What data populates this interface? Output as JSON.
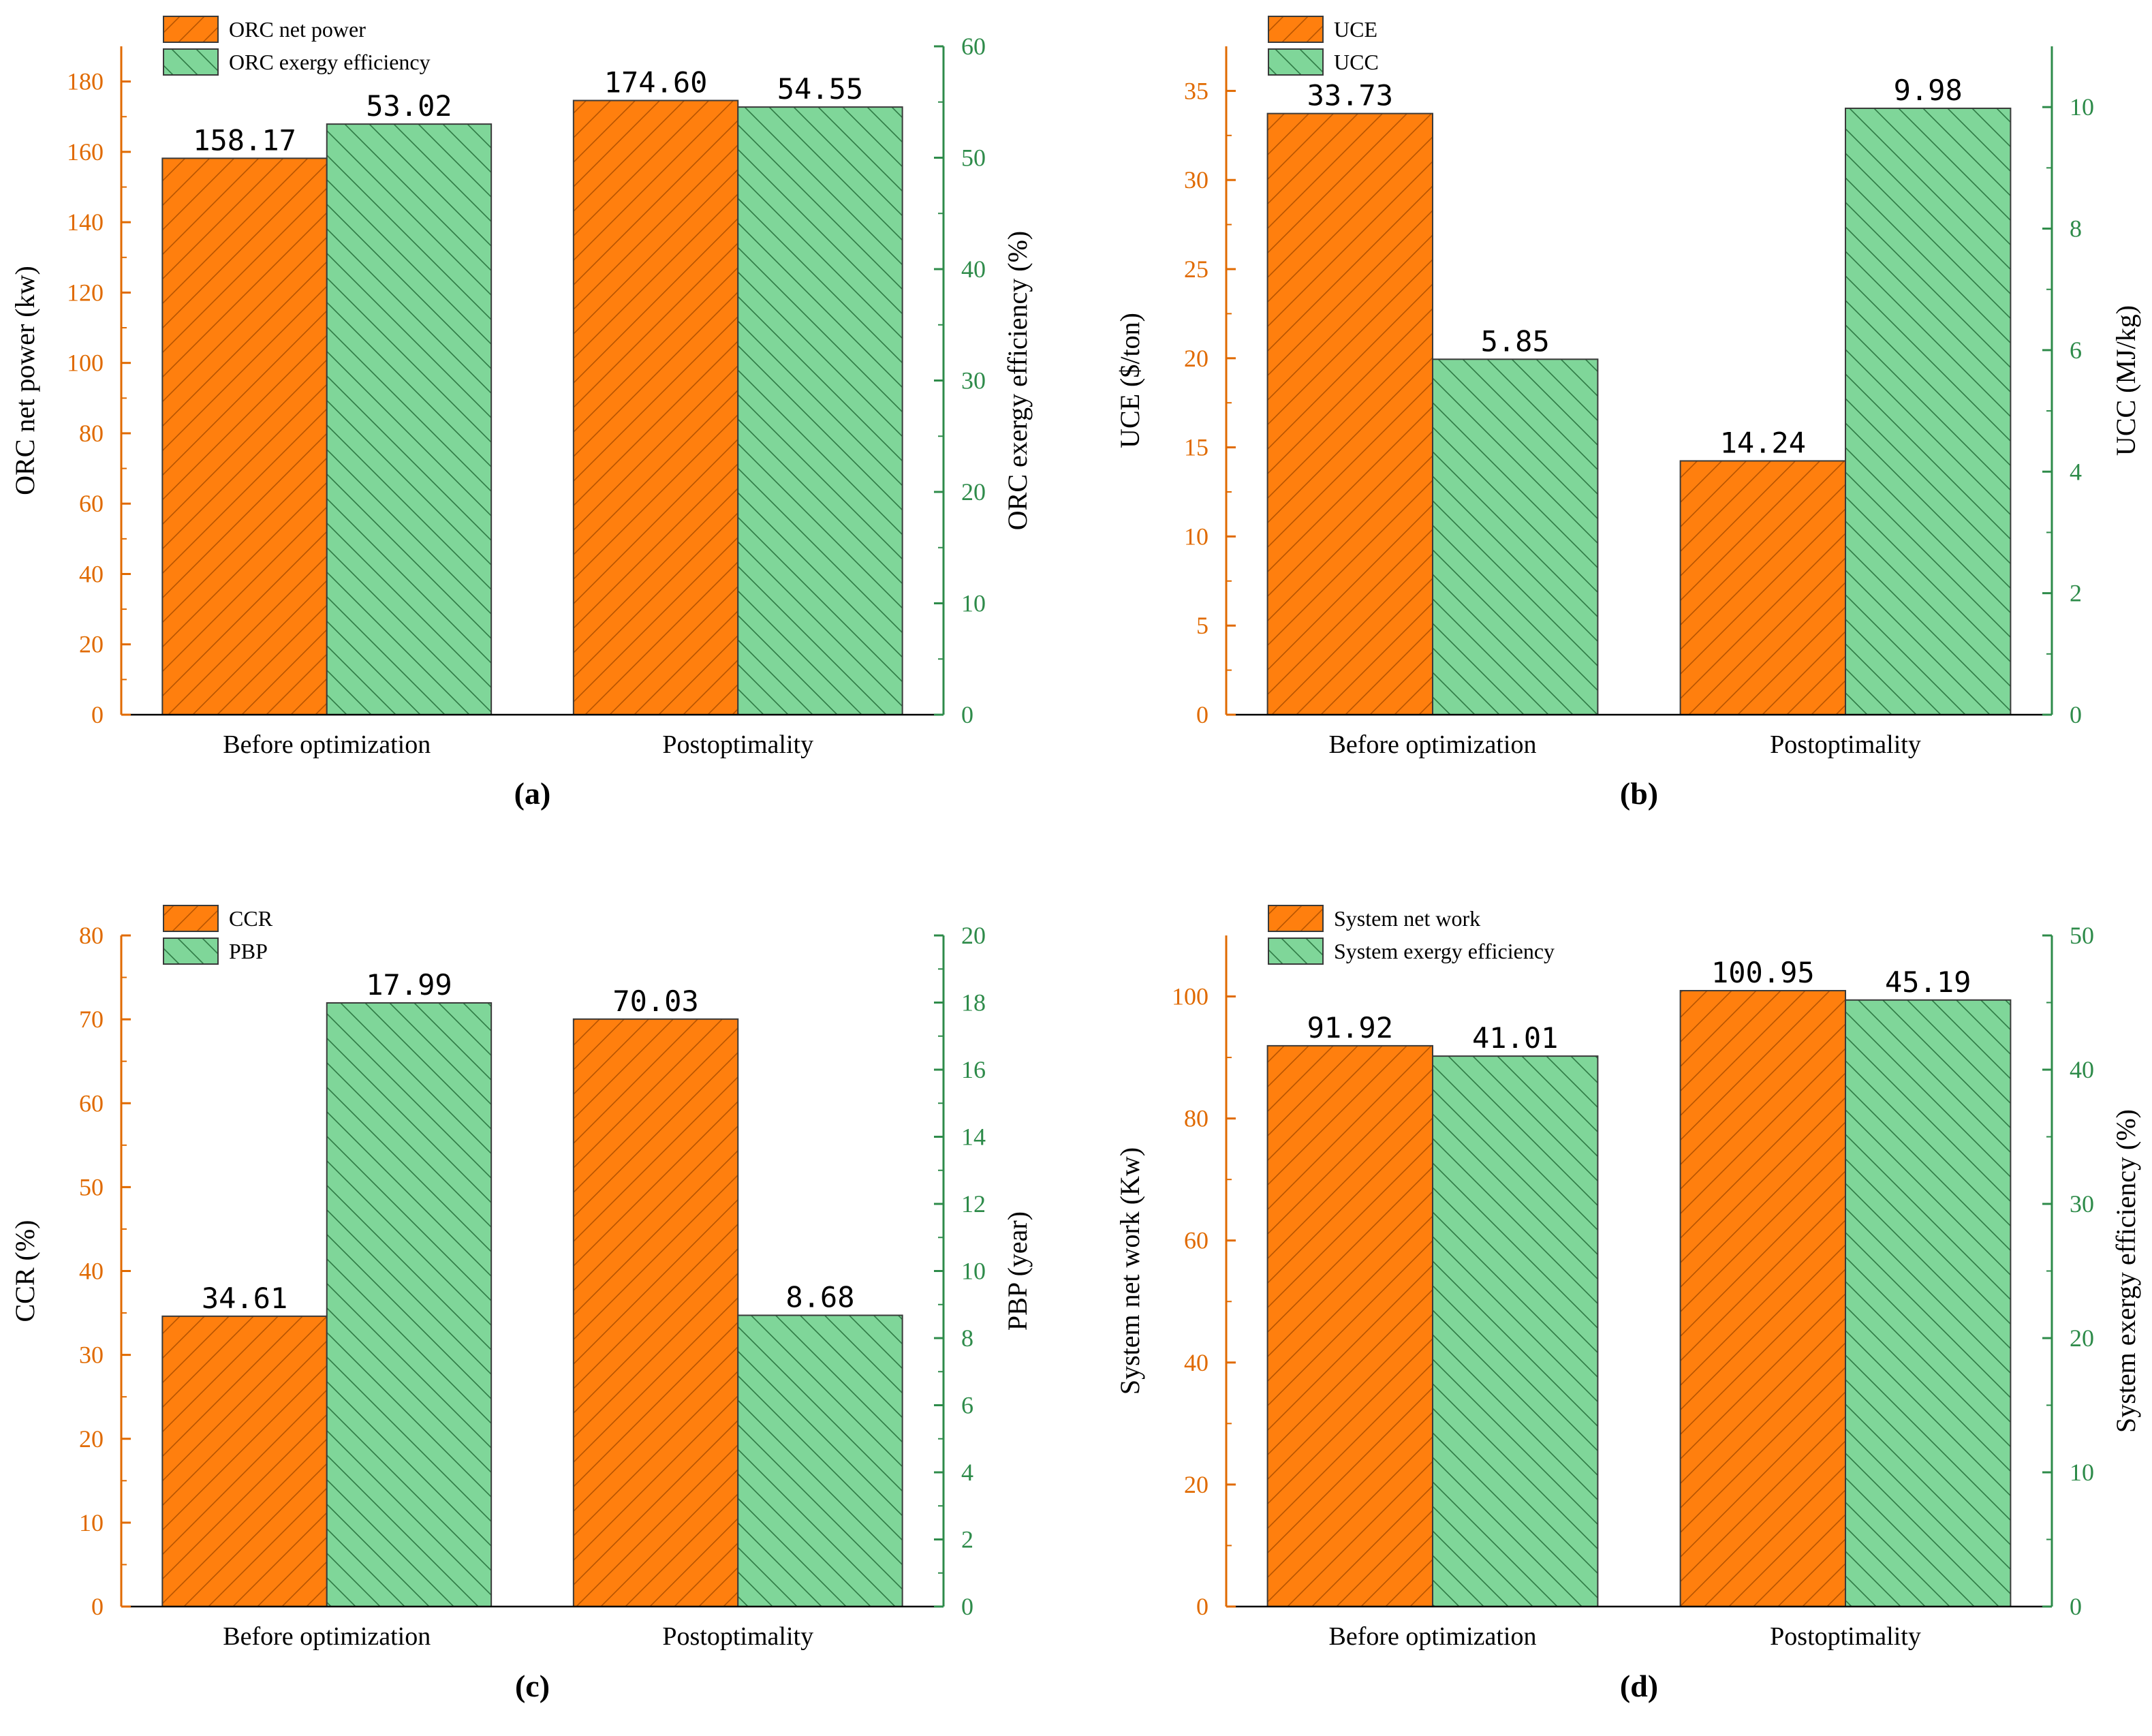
{
  "colors": {
    "orange_fill": "#FF7F0E",
    "green_fill": "#7FD699",
    "left_axis": "#E06A00",
    "right_axis": "#2E8B4A",
    "bar_stroke": "#3a3a3a"
  },
  "chart_data": [
    {
      "type": "bar",
      "panel_label": "(a)",
      "categories": [
        "Before optimization",
        "Postoptimality"
      ],
      "series": [
        {
          "name": "ORC net power",
          "axis": "left",
          "values": [
            158.17,
            174.6
          ],
          "labels": [
            "158.17",
            "174.60"
          ]
        },
        {
          "name": "ORC exergy efficiency",
          "axis": "right",
          "values": [
            53.02,
            54.55
          ],
          "labels": [
            "53.02",
            "54.55"
          ]
        }
      ],
      "ylabel_left": "ORC net power (kw)",
      "ylabel_right": "ORC exergy efficiency (%)",
      "ylim_left": [
        0,
        190
      ],
      "yticks_left": [
        0,
        20,
        40,
        60,
        80,
        100,
        120,
        140,
        160,
        180
      ],
      "ylim_right": [
        0,
        60
      ],
      "yticks_right": [
        0,
        10,
        20,
        30,
        40,
        50,
        60
      ],
      "legend_position": "top-left"
    },
    {
      "type": "bar",
      "panel_label": "(b)",
      "categories": [
        "Before optimization",
        "Postoptimality"
      ],
      "series": [
        {
          "name": "UCE",
          "axis": "left",
          "values": [
            33.73,
            14.24
          ],
          "labels": [
            "33.73",
            "14.24"
          ]
        },
        {
          "name": "UCC",
          "axis": "right",
          "values": [
            5.85,
            9.98
          ],
          "labels": [
            "5.85",
            "9.98"
          ]
        }
      ],
      "ylabel_left": "UCE ($/ton)",
      "ylabel_right": "UCC (MJ/kg)",
      "ylim_left": [
        0,
        37.5
      ],
      "yticks_left": [
        0,
        5,
        10,
        15,
        20,
        25,
        30,
        35
      ],
      "ylim_right": [
        0,
        11
      ],
      "yticks_right": [
        0,
        2,
        4,
        6,
        8,
        10
      ],
      "legend_position": "top-left"
    },
    {
      "type": "bar",
      "panel_label": "(c)",
      "categories": [
        "Before optimization",
        "Postoptimality"
      ],
      "series": [
        {
          "name": "CCR",
          "axis": "left",
          "values": [
            34.61,
            70.03
          ],
          "labels": [
            "34.61",
            "70.03"
          ]
        },
        {
          "name": "PBP",
          "axis": "right",
          "values": [
            17.99,
            8.68
          ],
          "labels": [
            "17.99",
            "8.68"
          ]
        }
      ],
      "ylabel_left": "CCR (%)",
      "ylabel_right": "PBP (year)",
      "ylim_left": [
        0,
        80
      ],
      "yticks_left": [
        0,
        10,
        20,
        30,
        40,
        50,
        60,
        70,
        80
      ],
      "ylim_right": [
        0,
        20
      ],
      "yticks_right": [
        0,
        2,
        4,
        6,
        8,
        10,
        12,
        14,
        16,
        18,
        20
      ],
      "legend_position": "top-left"
    },
    {
      "type": "bar",
      "panel_label": "(d)",
      "categories": [
        "Before optimization",
        "Postoptimality"
      ],
      "series": [
        {
          "name": "System net work",
          "axis": "left",
          "values": [
            91.92,
            100.95
          ],
          "labels": [
            "91.92",
            "100.95"
          ]
        },
        {
          "name": "System exergy efficiency",
          "axis": "right",
          "values": [
            41.01,
            45.19
          ],
          "labels": [
            "41.01",
            "45.19"
          ]
        }
      ],
      "ylabel_left": "System net work (Kw)",
      "ylabel_right": "System exergy efficiency (%)",
      "ylim_left": [
        0,
        110
      ],
      "yticks_left": [
        0,
        20,
        40,
        60,
        80,
        100
      ],
      "ylim_right": [
        0,
        50
      ],
      "yticks_right": [
        0,
        10,
        20,
        30,
        40,
        50
      ],
      "legend_position": "top-left"
    }
  ]
}
